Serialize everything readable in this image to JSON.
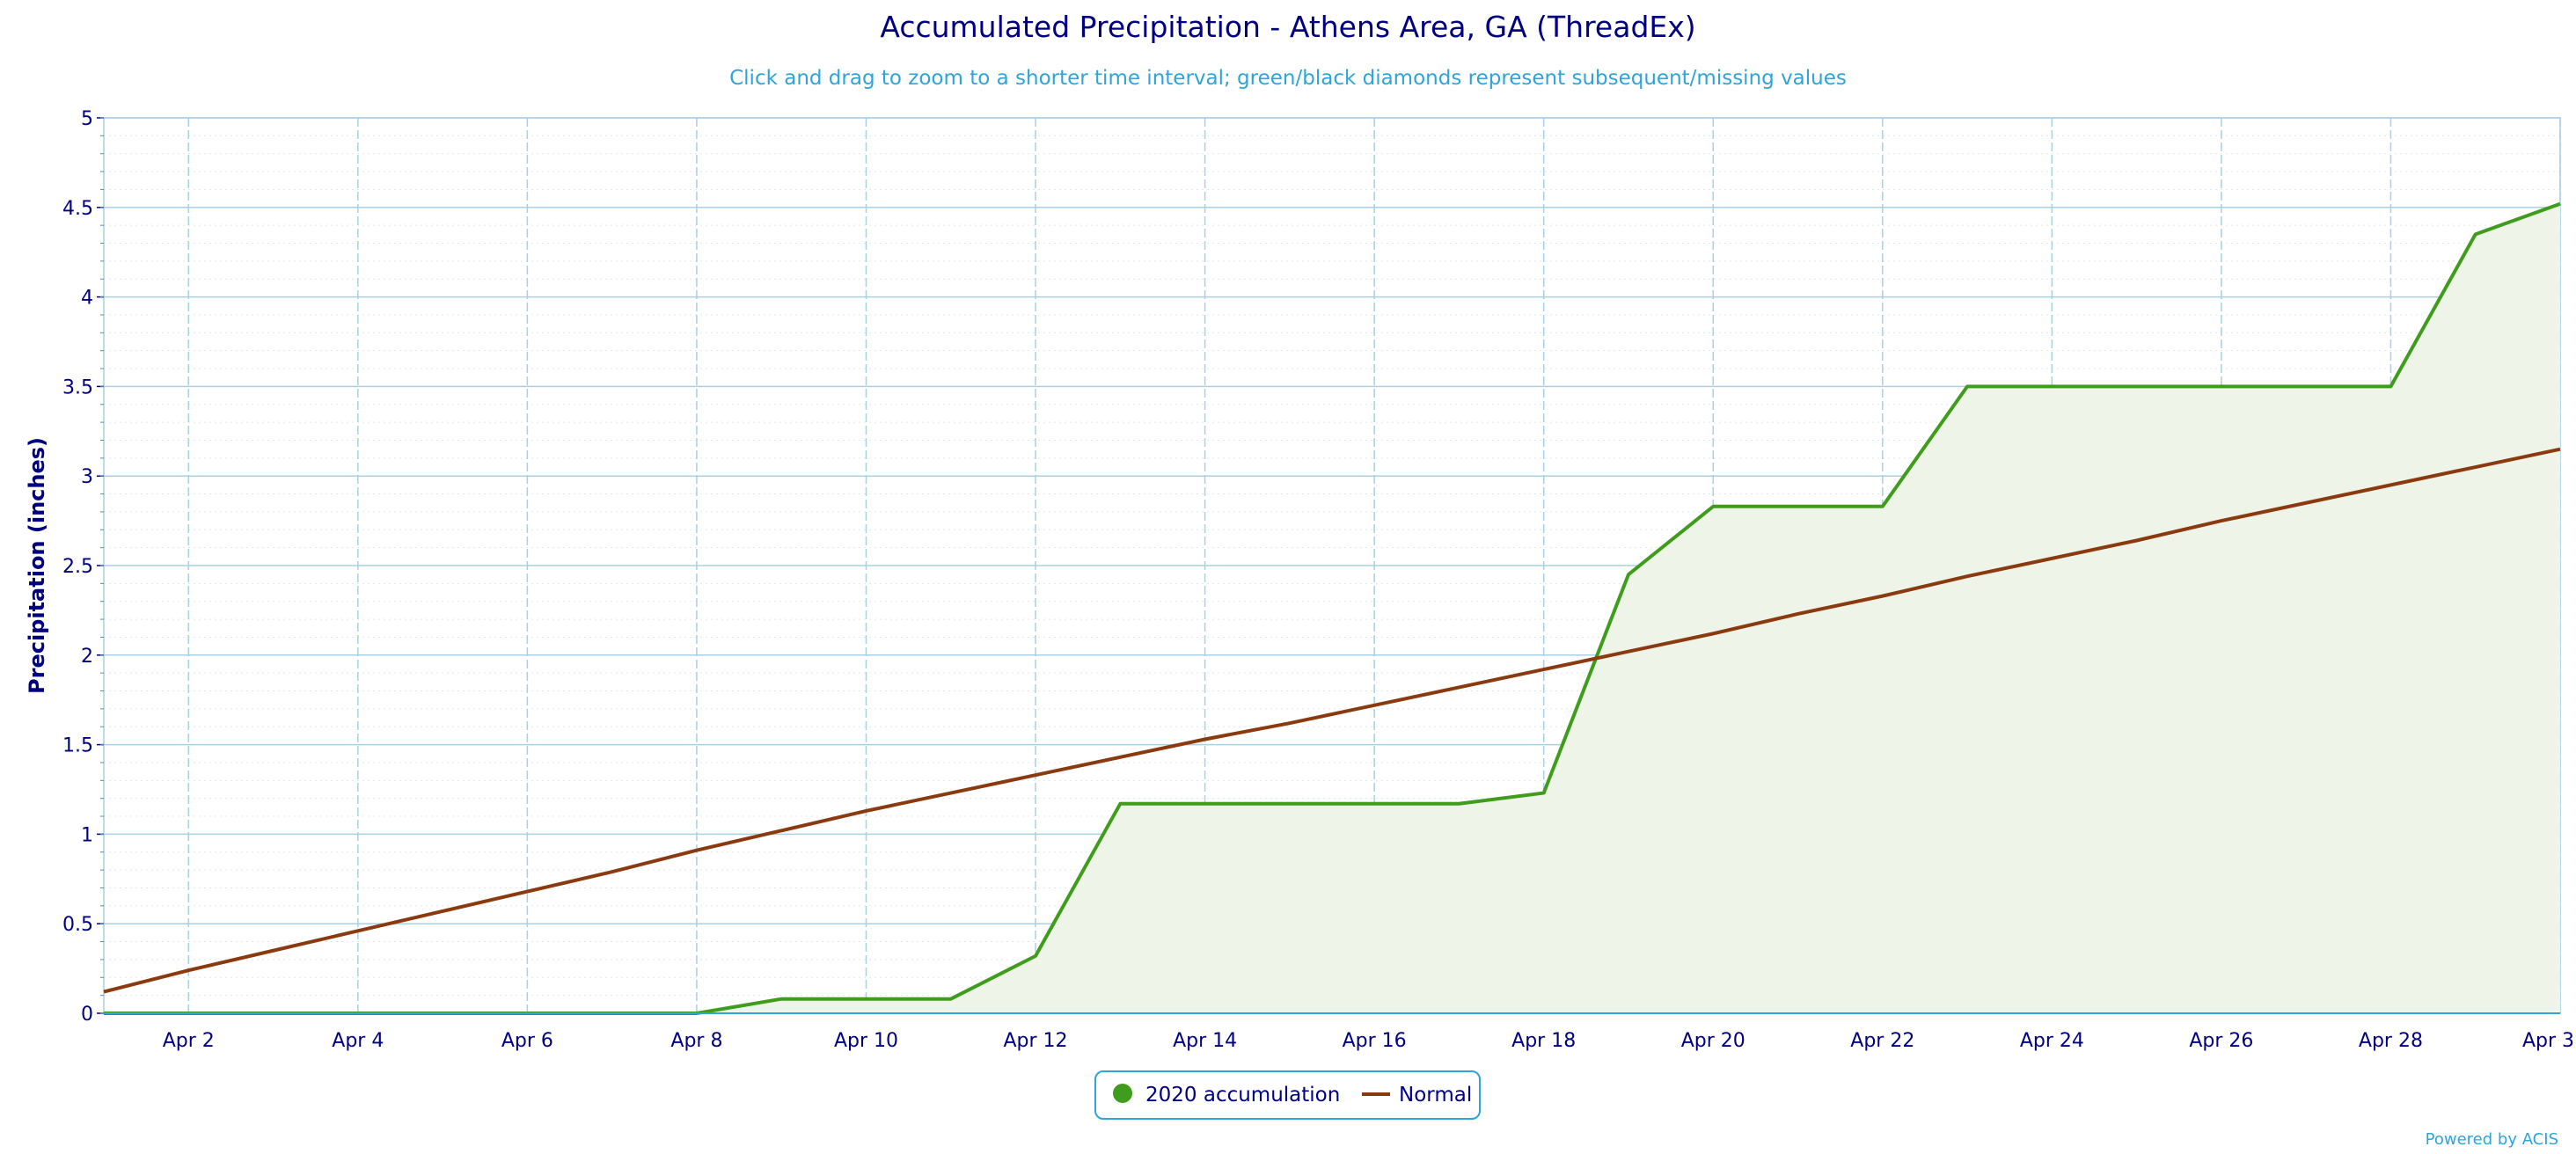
{
  "chart_data": {
    "type": "line",
    "title": "Accumulated Precipitation - Athens Area, GA (ThreadEx)",
    "subtitle": "Click and drag to zoom to a shorter time interval; green/black diamonds represent subsequent/missing values",
    "ylabel": "Precipitation (inches)",
    "xlabel": "",
    "x_tick_labels": [
      "Apr 2",
      "Apr 4",
      "Apr 6",
      "Apr 8",
      "Apr 10",
      "Apr 12",
      "Apr 14",
      "Apr 16",
      "Apr 18",
      "Apr 20",
      "Apr 22",
      "Apr 24",
      "Apr 26",
      "Apr 28",
      "Apr 3"
    ],
    "x_tick_days": [
      2,
      4,
      6,
      8,
      10,
      12,
      14,
      16,
      18,
      20,
      22,
      24,
      26,
      28,
      30
    ],
    "xlim": [
      1,
      30
    ],
    "ylim": [
      0,
      5
    ],
    "y_ticks": [
      0,
      0.5,
      1,
      1.5,
      2,
      2.5,
      3,
      3.5,
      4,
      4.5,
      5
    ],
    "y_tick_labels": [
      "0",
      "0.5",
      "1",
      "1.5",
      "2",
      "2.5",
      "3",
      "3.5",
      "4",
      "4.5",
      "5"
    ],
    "grid": true,
    "legend_position": "bottom-center",
    "series": [
      {
        "name": "2020 accumulation",
        "color": "#3f9c1c",
        "fill": "#eef5e8",
        "style": "area",
        "x": [
          1,
          2,
          3,
          4,
          5,
          6,
          7,
          8,
          9,
          10,
          11,
          12,
          13,
          14,
          15,
          16,
          17,
          18,
          19,
          20,
          21,
          22,
          23,
          24,
          25,
          26,
          27,
          28,
          29,
          30
        ],
        "values": [
          0,
          0,
          0,
          0,
          0,
          0,
          0,
          0,
          0.08,
          0.08,
          0.08,
          0.32,
          1.17,
          1.17,
          1.17,
          1.17,
          1.17,
          1.23,
          2.45,
          2.83,
          2.83,
          2.83,
          3.5,
          3.5,
          3.5,
          3.5,
          3.5,
          3.5,
          4.35,
          4.52
        ]
      },
      {
        "name": "Normal",
        "color": "#8b3a0f",
        "style": "line",
        "x": [
          1,
          2,
          3,
          4,
          5,
          6,
          7,
          8,
          9,
          10,
          11,
          12,
          13,
          14,
          15,
          16,
          17,
          18,
          19,
          20,
          21,
          22,
          23,
          24,
          25,
          26,
          27,
          28,
          29,
          30
        ],
        "values": [
          0.12,
          0.24,
          0.35,
          0.46,
          0.57,
          0.68,
          0.79,
          0.91,
          1.02,
          1.13,
          1.23,
          1.33,
          1.43,
          1.53,
          1.62,
          1.72,
          1.82,
          1.92,
          2.02,
          2.12,
          2.23,
          2.33,
          2.44,
          2.54,
          2.64,
          2.75,
          2.85,
          2.95,
          3.05,
          3.15
        ]
      }
    ]
  },
  "credit": "Powered by ACIS"
}
